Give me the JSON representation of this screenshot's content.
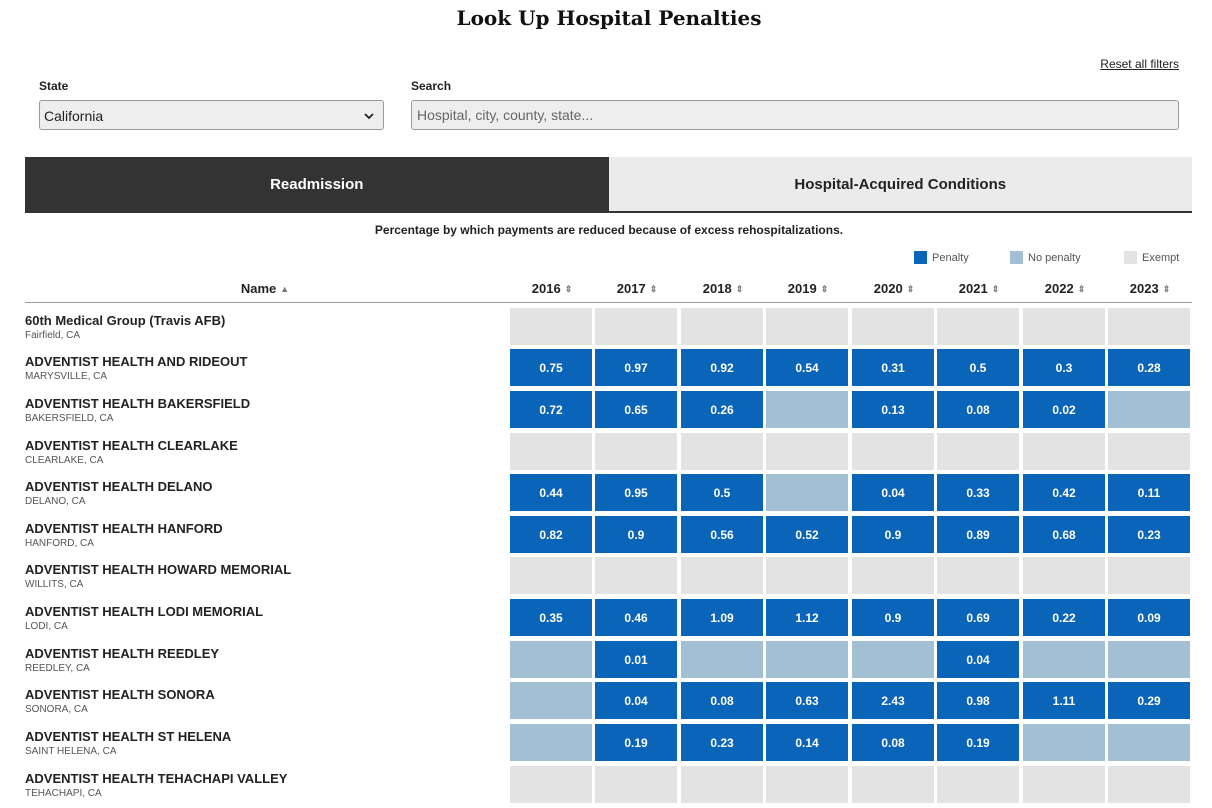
{
  "page_title": "Look Up Hospital Penalties",
  "reset_link": "Reset all filters",
  "filters": {
    "state_label": "State",
    "state_value": "California",
    "search_label": "Search",
    "search_placeholder": "Hospital, city, county, state..."
  },
  "tabs": [
    {
      "label": "Readmission",
      "active": true
    },
    {
      "label": "Hospital-Acquired Conditions",
      "active": false
    }
  ],
  "subtitle": "Percentage by which payments are reduced because of excess rehospitalizations.",
  "legend": [
    {
      "label": "Penalty",
      "color": "#0a64b7"
    },
    {
      "label": "No penalty",
      "color": "#a3bfd3"
    },
    {
      "label": "Exempt",
      "color": "#e3e3e3"
    }
  ],
  "table": {
    "name_header": "Name",
    "years": [
      "2016",
      "2017",
      "2018",
      "2019",
      "2020",
      "2021",
      "2022",
      "2023"
    ],
    "rows": [
      {
        "name": "60th Medical Group (Travis AFB)",
        "city": "Fairfield, CA",
        "cells": [
          {
            "s": "exempt",
            "v": ""
          },
          {
            "s": "exempt",
            "v": ""
          },
          {
            "s": "exempt",
            "v": ""
          },
          {
            "s": "exempt",
            "v": ""
          },
          {
            "s": "exempt",
            "v": ""
          },
          {
            "s": "exempt",
            "v": ""
          },
          {
            "s": "exempt",
            "v": ""
          },
          {
            "s": "exempt",
            "v": ""
          }
        ]
      },
      {
        "name": "ADVENTIST HEALTH AND RIDEOUT",
        "city": "MARYSVILLE, CA",
        "cells": [
          {
            "s": "penalty",
            "v": "0.75"
          },
          {
            "s": "penalty",
            "v": "0.97"
          },
          {
            "s": "penalty",
            "v": "0.92"
          },
          {
            "s": "penalty",
            "v": "0.54"
          },
          {
            "s": "penalty",
            "v": "0.31"
          },
          {
            "s": "penalty",
            "v": "0.5"
          },
          {
            "s": "penalty",
            "v": "0.3"
          },
          {
            "s": "penalty",
            "v": "0.28"
          }
        ]
      },
      {
        "name": "ADVENTIST HEALTH BAKERSFIELD",
        "city": "BAKERSFIELD, CA",
        "cells": [
          {
            "s": "penalty",
            "v": "0.72"
          },
          {
            "s": "penalty",
            "v": "0.65"
          },
          {
            "s": "penalty",
            "v": "0.26"
          },
          {
            "s": "nopenalty",
            "v": ""
          },
          {
            "s": "penalty",
            "v": "0.13"
          },
          {
            "s": "penalty",
            "v": "0.08"
          },
          {
            "s": "penalty",
            "v": "0.02"
          },
          {
            "s": "nopenalty",
            "v": ""
          }
        ]
      },
      {
        "name": "ADVENTIST HEALTH CLEARLAKE",
        "city": "CLEARLAKE, CA",
        "cells": [
          {
            "s": "exempt",
            "v": ""
          },
          {
            "s": "exempt",
            "v": ""
          },
          {
            "s": "exempt",
            "v": ""
          },
          {
            "s": "exempt",
            "v": ""
          },
          {
            "s": "exempt",
            "v": ""
          },
          {
            "s": "exempt",
            "v": ""
          },
          {
            "s": "exempt",
            "v": ""
          },
          {
            "s": "exempt",
            "v": ""
          }
        ]
      },
      {
        "name": "ADVENTIST HEALTH DELANO",
        "city": "DELANO, CA",
        "cells": [
          {
            "s": "penalty",
            "v": "0.44"
          },
          {
            "s": "penalty",
            "v": "0.95"
          },
          {
            "s": "penalty",
            "v": "0.5"
          },
          {
            "s": "nopenalty",
            "v": ""
          },
          {
            "s": "penalty",
            "v": "0.04"
          },
          {
            "s": "penalty",
            "v": "0.33"
          },
          {
            "s": "penalty",
            "v": "0.42"
          },
          {
            "s": "penalty",
            "v": "0.11"
          }
        ]
      },
      {
        "name": "ADVENTIST HEALTH HANFORD",
        "city": "HANFORD, CA",
        "cells": [
          {
            "s": "penalty",
            "v": "0.82"
          },
          {
            "s": "penalty",
            "v": "0.9"
          },
          {
            "s": "penalty",
            "v": "0.56"
          },
          {
            "s": "penalty",
            "v": "0.52"
          },
          {
            "s": "penalty",
            "v": "0.9"
          },
          {
            "s": "penalty",
            "v": "0.89"
          },
          {
            "s": "penalty",
            "v": "0.68"
          },
          {
            "s": "penalty",
            "v": "0.23"
          }
        ]
      },
      {
        "name": "ADVENTIST HEALTH HOWARD MEMORIAL",
        "city": "WILLITS, CA",
        "cells": [
          {
            "s": "exempt",
            "v": ""
          },
          {
            "s": "exempt",
            "v": ""
          },
          {
            "s": "exempt",
            "v": ""
          },
          {
            "s": "exempt",
            "v": ""
          },
          {
            "s": "exempt",
            "v": ""
          },
          {
            "s": "exempt",
            "v": ""
          },
          {
            "s": "exempt",
            "v": ""
          },
          {
            "s": "exempt",
            "v": ""
          }
        ]
      },
      {
        "name": "ADVENTIST HEALTH LODI MEMORIAL",
        "city": "LODI, CA",
        "cells": [
          {
            "s": "penalty",
            "v": "0.35"
          },
          {
            "s": "penalty",
            "v": "0.46"
          },
          {
            "s": "penalty",
            "v": "1.09"
          },
          {
            "s": "penalty",
            "v": "1.12"
          },
          {
            "s": "penalty",
            "v": "0.9"
          },
          {
            "s": "penalty",
            "v": "0.69"
          },
          {
            "s": "penalty",
            "v": "0.22"
          },
          {
            "s": "penalty",
            "v": "0.09"
          }
        ]
      },
      {
        "name": "ADVENTIST HEALTH REEDLEY",
        "city": "REEDLEY, CA",
        "cells": [
          {
            "s": "nopenalty",
            "v": ""
          },
          {
            "s": "penalty",
            "v": "0.01"
          },
          {
            "s": "nopenalty",
            "v": ""
          },
          {
            "s": "nopenalty",
            "v": ""
          },
          {
            "s": "nopenalty",
            "v": ""
          },
          {
            "s": "penalty",
            "v": "0.04"
          },
          {
            "s": "nopenalty",
            "v": ""
          },
          {
            "s": "nopenalty",
            "v": ""
          }
        ]
      },
      {
        "name": "ADVENTIST HEALTH SONORA",
        "city": "SONORA, CA",
        "cells": [
          {
            "s": "nopenalty",
            "v": ""
          },
          {
            "s": "penalty",
            "v": "0.04"
          },
          {
            "s": "penalty",
            "v": "0.08"
          },
          {
            "s": "penalty",
            "v": "0.63"
          },
          {
            "s": "penalty",
            "v": "2.43"
          },
          {
            "s": "penalty",
            "v": "0.98"
          },
          {
            "s": "penalty",
            "v": "1.11"
          },
          {
            "s": "penalty",
            "v": "0.29"
          }
        ]
      },
      {
        "name": "ADVENTIST HEALTH ST HELENA",
        "city": "SAINT HELENA, CA",
        "cells": [
          {
            "s": "nopenalty",
            "v": ""
          },
          {
            "s": "penalty",
            "v": "0.19"
          },
          {
            "s": "penalty",
            "v": "0.23"
          },
          {
            "s": "penalty",
            "v": "0.14"
          },
          {
            "s": "penalty",
            "v": "0.08"
          },
          {
            "s": "penalty",
            "v": "0.19"
          },
          {
            "s": "nopenalty",
            "v": ""
          },
          {
            "s": "nopenalty",
            "v": ""
          }
        ]
      },
      {
        "name": "ADVENTIST HEALTH TEHACHAPI VALLEY",
        "city": "TEHACHAPI, CA",
        "cells": [
          {
            "s": "exempt",
            "v": ""
          },
          {
            "s": "exempt",
            "v": ""
          },
          {
            "s": "exempt",
            "v": ""
          },
          {
            "s": "exempt",
            "v": ""
          },
          {
            "s": "exempt",
            "v": ""
          },
          {
            "s": "exempt",
            "v": ""
          },
          {
            "s": "exempt",
            "v": ""
          },
          {
            "s": "exempt",
            "v": ""
          }
        ]
      }
    ]
  }
}
